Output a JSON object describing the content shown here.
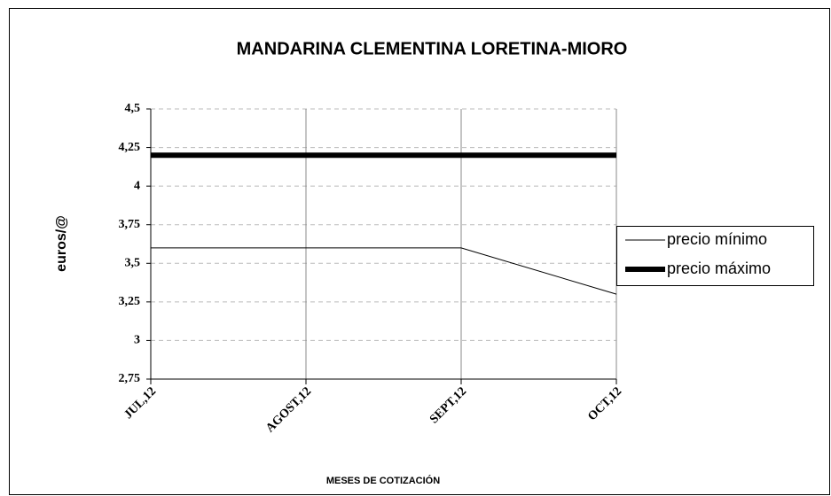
{
  "chart_data": {
    "type": "line",
    "title": "MANDARINA CLEMENTINA LORETINA-MIORO",
    "y_label": "euros/@",
    "x_label": "MESES DE COTIZACIÓN",
    "categories": [
      "JUL,12",
      "AGOST,12",
      "SEPT,12",
      "OCT,12"
    ],
    "series": [
      {
        "name": "precio mínimo",
        "color": "#000000",
        "values": [
          3.6,
          3.6,
          3.6,
          3.3
        ]
      },
      {
        "name": "precio máximo",
        "color": "#000000",
        "values": [
          4.2,
          4.2,
          4.2,
          4.2
        ]
      }
    ],
    "ylim": [
      2.75,
      4.5
    ],
    "yticks": [
      {
        "value": 2.75,
        "label": "2,75"
      },
      3,
      {
        "value": 3.25,
        "label": "3,25"
      },
      {
        "value": 3.5,
        "label": "3,5"
      },
      {
        "value": 3.75,
        "label": "3,75"
      },
      4,
      {
        "value": 4.25,
        "label": "4,25"
      },
      {
        "value": 4.5,
        "label": "4,5"
      }
    ],
    "grid": true,
    "legend": "right"
  }
}
